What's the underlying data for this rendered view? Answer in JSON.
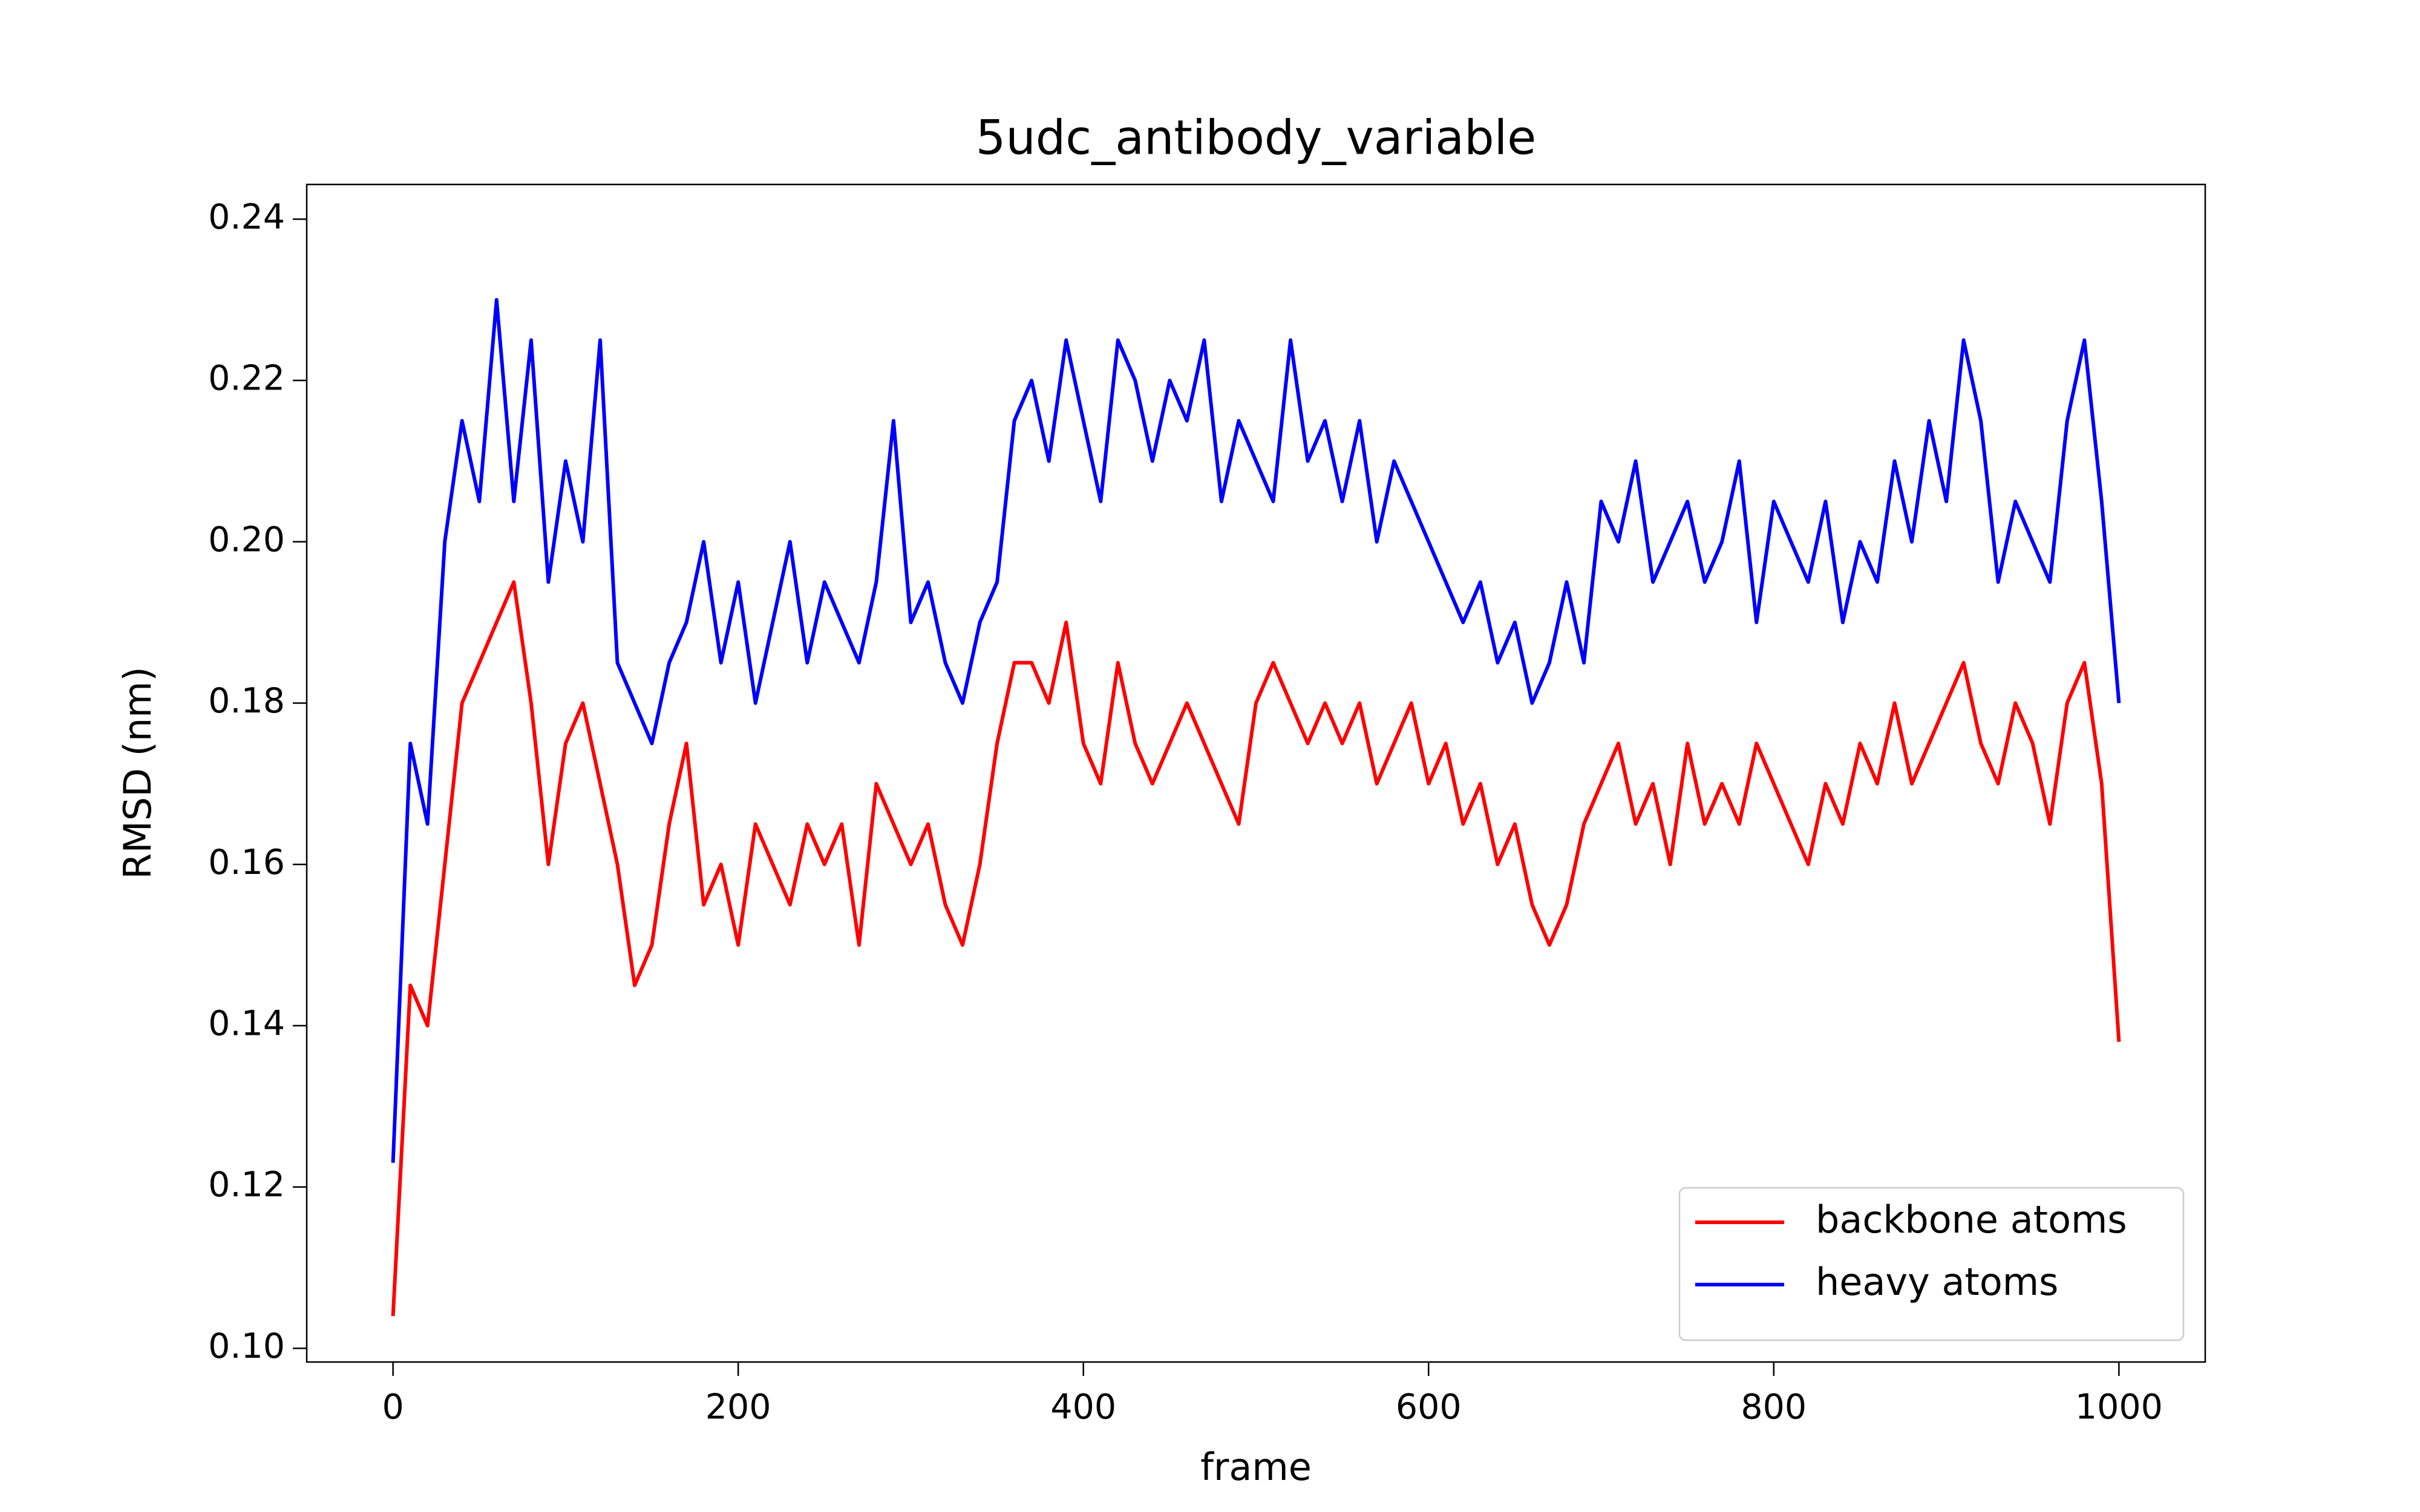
{
  "chart_data": {
    "type": "line",
    "title": "5udc_antibody_variable",
    "x_label": "frame",
    "y_label": "RMSD (nm)",
    "x": [
      0,
      10,
      20,
      30,
      40,
      50,
      60,
      70,
      80,
      90,
      100,
      110,
      120,
      130,
      140,
      150,
      160,
      170,
      180,
      190,
      200,
      210,
      220,
      230,
      240,
      250,
      260,
      270,
      280,
      290,
      300,
      310,
      320,
      330,
      340,
      350,
      360,
      370,
      380,
      390,
      400,
      410,
      420,
      430,
      440,
      450,
      460,
      470,
      480,
      490,
      500,
      510,
      520,
      530,
      540,
      550,
      560,
      570,
      580,
      590,
      600,
      610,
      620,
      630,
      640,
      650,
      660,
      670,
      680,
      690,
      700,
      710,
      720,
      730,
      740,
      750,
      760,
      770,
      780,
      790,
      800,
      810,
      820,
      830,
      840,
      850,
      860,
      870,
      880,
      890,
      900,
      910,
      920,
      930,
      940,
      950,
      960,
      970,
      980,
      990,
      1000
    ],
    "series": [
      {
        "name": "backbone atoms",
        "color": "#ff0000",
        "values": [
          0.104,
          0.145,
          0.14,
          0.16,
          0.18,
          0.185,
          0.19,
          0.195,
          0.18,
          0.16,
          0.175,
          0.18,
          0.17,
          0.16,
          0.145,
          0.15,
          0.165,
          0.175,
          0.155,
          0.16,
          0.15,
          0.165,
          0.16,
          0.155,
          0.165,
          0.16,
          0.165,
          0.15,
          0.17,
          0.165,
          0.16,
          0.165,
          0.155,
          0.15,
          0.16,
          0.175,
          0.185,
          0.185,
          0.18,
          0.19,
          0.175,
          0.17,
          0.185,
          0.175,
          0.17,
          0.175,
          0.18,
          0.175,
          0.17,
          0.165,
          0.18,
          0.185,
          0.18,
          0.175,
          0.18,
          0.175,
          0.18,
          0.17,
          0.175,
          0.18,
          0.17,
          0.175,
          0.165,
          0.17,
          0.16,
          0.165,
          0.155,
          0.15,
          0.155,
          0.165,
          0.17,
          0.175,
          0.165,
          0.17,
          0.16,
          0.175,
          0.165,
          0.17,
          0.165,
          0.175,
          0.17,
          0.165,
          0.16,
          0.17,
          0.165,
          0.175,
          0.17,
          0.18,
          0.17,
          0.175,
          0.18,
          0.185,
          0.175,
          0.17,
          0.18,
          0.175,
          0.165,
          0.18,
          0.185,
          0.17,
          0.138
        ]
      },
      {
        "name": "heavy atoms",
        "color": "#0000ff",
        "values": [
          0.123,
          0.175,
          0.165,
          0.2,
          0.215,
          0.205,
          0.23,
          0.205,
          0.225,
          0.195,
          0.21,
          0.2,
          0.225,
          0.185,
          0.18,
          0.175,
          0.185,
          0.19,
          0.2,
          0.185,
          0.195,
          0.18,
          0.19,
          0.2,
          0.185,
          0.195,
          0.19,
          0.185,
          0.195,
          0.215,
          0.19,
          0.195,
          0.185,
          0.18,
          0.19,
          0.195,
          0.215,
          0.22,
          0.21,
          0.225,
          0.215,
          0.205,
          0.225,
          0.22,
          0.21,
          0.22,
          0.215,
          0.225,
          0.205,
          0.215,
          0.21,
          0.205,
          0.225,
          0.21,
          0.215,
          0.205,
          0.215,
          0.2,
          0.21,
          0.205,
          0.2,
          0.195,
          0.19,
          0.195,
          0.185,
          0.19,
          0.18,
          0.185,
          0.195,
          0.185,
          0.205,
          0.2,
          0.21,
          0.195,
          0.2,
          0.205,
          0.195,
          0.2,
          0.21,
          0.19,
          0.205,
          0.2,
          0.195,
          0.205,
          0.19,
          0.2,
          0.195,
          0.21,
          0.2,
          0.215,
          0.205,
          0.225,
          0.215,
          0.195,
          0.205,
          0.2,
          0.195,
          0.215,
          0.225,
          0.205,
          0.18
        ]
      }
    ],
    "xlim": [
      -50,
      1050
    ],
    "xticks": [
      0,
      200,
      400,
      600,
      800,
      1000
    ],
    "ylim": [
      0.0983,
      0.2443
    ],
    "yticks": [
      {
        "value": 0.1,
        "label": "0.10"
      },
      0.12,
      0.14,
      0.16,
      0.18,
      {
        "value": 0.2,
        "label": "0.20"
      },
      0.22,
      0.24
    ],
    "legend": "lower right",
    "grid": false
  }
}
